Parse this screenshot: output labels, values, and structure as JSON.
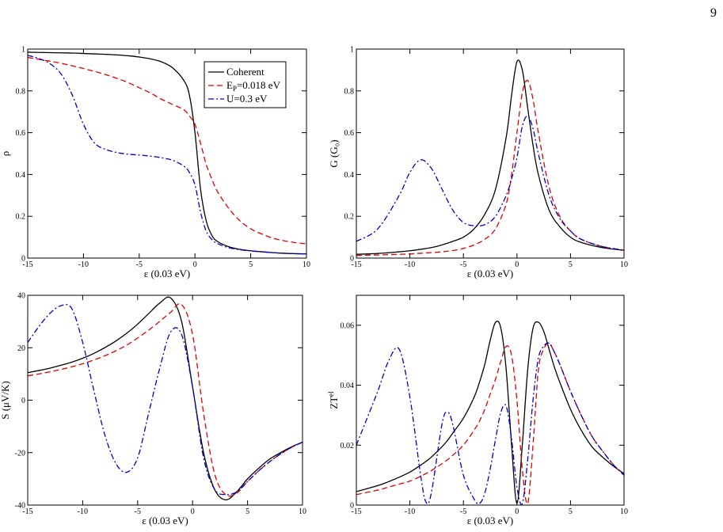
{
  "page_number": "9",
  "legend": {
    "entries": [
      "Coherent",
      "E_P=0.018 eV",
      "U=0.3 eV"
    ]
  },
  "styles": {
    "series_colors": [
      "#000000",
      "#e00000",
      "#0000cc"
    ],
    "series_dashes": [
      "none",
      "7,4",
      "7,3,2,3"
    ]
  },
  "chart_data": [
    {
      "type": "line",
      "ylabel": "ρ",
      "xlabel": "ε  (0.03 eV)",
      "xlim": [
        -15,
        10
      ],
      "ylim": [
        0,
        1
      ],
      "xticks": [
        -15,
        -10,
        -5,
        0,
        5,
        10
      ],
      "xtick_labels": [
        "-15",
        "-10",
        "-5",
        "0",
        "5",
        "10"
      ],
      "yticks": [
        0,
        0.2,
        0.4,
        0.6,
        0.8,
        1
      ],
      "ytick_labels": [
        "0",
        "0.2",
        "0.4",
        "0.6",
        "0.8",
        "1"
      ],
      "legend": "top-right",
      "x": [
        -15,
        -14,
        -13,
        -12,
        -11,
        -10,
        -9,
        -8,
        -7,
        -6,
        -5,
        -4,
        -3,
        -2,
        -1,
        -0.5,
        0,
        0.5,
        1,
        1.5,
        2,
        3,
        4,
        5,
        6,
        7,
        8,
        9,
        10
      ],
      "series": [
        {
          "name": "Coherent",
          "values": [
            0.985,
            0.984,
            0.983,
            0.982,
            0.981,
            0.979,
            0.977,
            0.975,
            0.972,
            0.968,
            0.962,
            0.953,
            0.939,
            0.91,
            0.85,
            0.78,
            0.6,
            0.33,
            0.18,
            0.11,
            0.08,
            0.055,
            0.042,
            0.035,
            0.03,
            0.026,
            0.023,
            0.021,
            0.02
          ]
        },
        {
          "name": "E_P=0.018 eV",
          "values": [
            0.96,
            0.951,
            0.942,
            0.932,
            0.92,
            0.907,
            0.893,
            0.878,
            0.86,
            0.84,
            0.815,
            0.79,
            0.76,
            0.735,
            0.71,
            0.68,
            0.64,
            0.55,
            0.45,
            0.38,
            0.32,
            0.24,
            0.18,
            0.14,
            0.115,
            0.095,
            0.083,
            0.074,
            0.068
          ]
        },
        {
          "name": "U=0.3 eV",
          "values": [
            0.97,
            0.955,
            0.93,
            0.88,
            0.78,
            0.64,
            0.55,
            0.52,
            0.505,
            0.497,
            0.493,
            0.488,
            0.48,
            0.468,
            0.44,
            0.41,
            0.35,
            0.22,
            0.13,
            0.09,
            0.07,
            0.05,
            0.04,
            0.034,
            0.03,
            0.026,
            0.023,
            0.021,
            0.02
          ]
        }
      ]
    },
    {
      "type": "line",
      "ylabel": "G (G₀)",
      "xlabel": "ε  (0.03 eV)",
      "xlim": [
        -15,
        10
      ],
      "ylim": [
        0,
        1
      ],
      "xticks": [
        -15,
        -10,
        -5,
        0,
        5,
        10
      ],
      "xtick_labels": [
        "-15",
        "-10",
        "-5",
        "0",
        "5",
        "10"
      ],
      "yticks": [
        0,
        0.2,
        0.4,
        0.6,
        0.8,
        1
      ],
      "ytick_labels": [
        "0",
        "0.2",
        "0.4",
        "0.6",
        "0.8",
        "1"
      ],
      "x": [
        -15,
        -13,
        -11,
        -10,
        -9,
        -8,
        -7,
        -6,
        -5,
        -4,
        -3,
        -2,
        -1,
        -0.5,
        0,
        0.5,
        1,
        1.5,
        2,
        3,
        4,
        5,
        6,
        8,
        10
      ],
      "series": [
        {
          "name": "Coherent",
          "values": [
            0.018,
            0.022,
            0.03,
            0.035,
            0.042,
            0.05,
            0.063,
            0.08,
            0.1,
            0.14,
            0.21,
            0.33,
            0.58,
            0.78,
            0.94,
            0.9,
            0.72,
            0.54,
            0.4,
            0.23,
            0.15,
            0.1,
            0.075,
            0.05,
            0.037
          ]
        },
        {
          "name": "E_P=0.018 eV",
          "values": [
            0.012,
            0.015,
            0.018,
            0.02,
            0.023,
            0.026,
            0.03,
            0.036,
            0.046,
            0.063,
            0.09,
            0.14,
            0.26,
            0.4,
            0.6,
            0.79,
            0.85,
            0.76,
            0.6,
            0.34,
            0.2,
            0.13,
            0.09,
            0.055,
            0.038
          ]
        },
        {
          "name": "U=0.3 eV",
          "values": [
            0.08,
            0.14,
            0.3,
            0.41,
            0.47,
            0.43,
            0.33,
            0.23,
            0.17,
            0.155,
            0.16,
            0.2,
            0.3,
            0.38,
            0.48,
            0.63,
            0.68,
            0.62,
            0.5,
            0.3,
            0.19,
            0.13,
            0.09,
            0.055,
            0.038
          ]
        }
      ]
    },
    {
      "type": "line",
      "ylabel": "S (μV/K)",
      "xlabel": "ε  (0.03 eV)",
      "xlim": [
        -15,
        10
      ],
      "ylim": [
        -40,
        40
      ],
      "xticks": [
        -15,
        -10,
        -5,
        0,
        5,
        10
      ],
      "xtick_labels": [
        "-15",
        "-10",
        "-5",
        "0",
        "5",
        "10"
      ],
      "yticks": [
        -40,
        -20,
        0,
        20,
        40
      ],
      "ytick_labels": [
        "-40",
        "-20",
        "0",
        "20",
        "40"
      ],
      "x": [
        -15,
        -14,
        -13,
        -12,
        -11,
        -10,
        -9,
        -8,
        -7,
        -6,
        -5,
        -4,
        -3,
        -2,
        -1,
        0,
        1,
        2,
        3,
        4,
        5,
        6,
        7,
        8,
        9,
        10
      ],
      "series": [
        {
          "name": "Coherent",
          "values": [
            10.5,
            11.3,
            12.2,
            13.3,
            14.5,
            16,
            17.8,
            20,
            22.5,
            25.5,
            29,
            33,
            37,
            39,
            30,
            5,
            -20,
            -34,
            -38,
            -35,
            -30,
            -26,
            -22.5,
            -20,
            -17.8,
            -16
          ]
        },
        {
          "name": "E_P=0.018 eV",
          "values": [
            9.3,
            10,
            10.8,
            11.7,
            12.7,
            13.9,
            15.3,
            16.9,
            18.8,
            21,
            23.7,
            26.7,
            30,
            33.5,
            36.5,
            25,
            -5,
            -28,
            -36,
            -35.5,
            -31,
            -27,
            -23.5,
            -20.5,
            -18,
            -16
          ]
        },
        {
          "name": "U=0.3 eV",
          "values": [
            22,
            28,
            33,
            36,
            35,
            22,
            4,
            -13,
            -24,
            -27.5,
            -22,
            -5,
            12,
            26,
            25,
            5,
            -22,
            -34,
            -36,
            -35,
            -31,
            -27,
            -23.5,
            -20.5,
            -18,
            -16
          ]
        }
      ]
    },
    {
      "type": "line",
      "ylabel": "ZT^el",
      "xlabel": "ε  (0.03 eV)",
      "xlim": [
        -15,
        10
      ],
      "ylim": [
        0,
        0.07
      ],
      "xticks": [
        -15,
        -10,
        -5,
        0,
        5,
        10
      ],
      "xtick_labels": [
        "-15",
        "-10",
        "-5",
        "0",
        "5",
        "10"
      ],
      "yticks": [
        0,
        0.02,
        0.04,
        0.06
      ],
      "ytick_labels": [
        "0",
        "0.02",
        "0.04",
        "0.06"
      ],
      "x": [
        -15,
        -13,
        -12,
        -11,
        -10,
        -9,
        -8.5,
        -8,
        -7,
        -6.5,
        -6,
        -5,
        -4,
        -3.5,
        -3,
        -2.5,
        -2,
        -1.5,
        -1,
        -0.5,
        0,
        0.5,
        1,
        1.5,
        2,
        2.5,
        3,
        3.5,
        4,
        5,
        6,
        7,
        8,
        9,
        10
      ],
      "series": [
        {
          "name": "Coherent",
          "values": [
            0.0045,
            0.0065,
            0.0078,
            0.0093,
            0.011,
            0.0133,
            0.0146,
            0.016,
            0.0195,
            0.0215,
            0.024,
            0.029,
            0.036,
            0.041,
            0.047,
            0.055,
            0.061,
            0.059,
            0.045,
            0.02,
            0.0005,
            0.02,
            0.045,
            0.059,
            0.061,
            0.058,
            0.052,
            0.046,
            0.041,
            0.032,
            0.025,
            0.0195,
            0.016,
            0.013,
            0.0105
          ]
        },
        {
          "name": "E_P=0.018 eV",
          "values": [
            0.0035,
            0.005,
            0.006,
            0.007,
            0.008,
            0.0096,
            0.0105,
            0.0115,
            0.0138,
            0.0151,
            0.0166,
            0.02,
            0.025,
            0.028,
            0.032,
            0.037,
            0.042,
            0.048,
            0.053,
            0.05,
            0.035,
            0.012,
            0.0005,
            0.02,
            0.045,
            0.052,
            0.054,
            0.051,
            0.047,
            0.038,
            0.03,
            0.023,
            0.018,
            0.0135,
            0.01
          ]
        },
        {
          "name": "U=0.3 eV",
          "values": [
            0.02,
            0.038,
            0.048,
            0.052,
            0.036,
            0.01,
            0.001,
            0.004,
            0.027,
            0.031,
            0.027,
            0.01,
            0.002,
            0.0005,
            0.004,
            0.012,
            0.022,
            0.031,
            0.033,
            0.022,
            0.006,
            0.0005,
            0.015,
            0.035,
            0.049,
            0.053,
            0.054,
            0.051,
            0.047,
            0.038,
            0.03,
            0.023,
            0.018,
            0.0135,
            0.01
          ]
        }
      ]
    }
  ]
}
